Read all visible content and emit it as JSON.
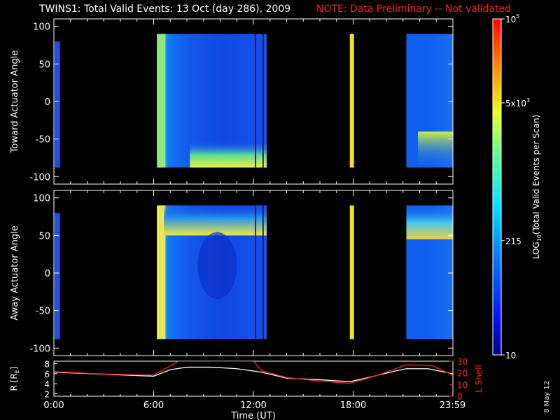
{
  "header": {
    "title": "TWINS1: Total Valid Events: 13 Oct (day 286), 2009",
    "note": "NOTE: Data Preliminary -- Not validated",
    "side_date": "8 May 12"
  },
  "chart_data": [
    {
      "type": "heatmap",
      "panel": "top",
      "ylabel": "Toward Actuator Angle",
      "ylim": [
        -110,
        110
      ],
      "yticks": [
        100,
        50,
        0,
        -50,
        -100
      ],
      "x_hours": [
        0,
        24
      ],
      "data_range_deg": [
        -88,
        90
      ],
      "blocks_hours": [
        {
          "start": 6.2,
          "end": 12.8,
          "style": "main"
        },
        {
          "start": 17.8,
          "end": 18.0,
          "style": "yellow"
        },
        {
          "start": 21.2,
          "end": 24.0,
          "style": "late"
        }
      ],
      "edge_strip_hours": [
        0,
        0.2
      ]
    },
    {
      "type": "heatmap",
      "panel": "middle",
      "ylabel": "Away Actuator Angle",
      "ylim": [
        -110,
        110
      ],
      "yticks": [
        100,
        50,
        0,
        -50,
        -100
      ],
      "x_hours": [
        0,
        24
      ],
      "data_range_deg": [
        -88,
        90
      ],
      "blocks_hours": [
        {
          "start": 6.2,
          "end": 12.8,
          "style": "main"
        },
        {
          "start": 17.8,
          "end": 18.0,
          "style": "yellow"
        },
        {
          "start": 21.2,
          "end": 24.0,
          "style": "late"
        }
      ],
      "edge_strip_hours": [
        0,
        0.2
      ]
    },
    {
      "type": "line",
      "panel": "bottom",
      "xlabel": "Time (UT)",
      "xticks": [
        "0:00",
        "6:00",
        "12:00",
        "18:00",
        "23:59"
      ],
      "xtick_hours": [
        0,
        6,
        12,
        18,
        23.98
      ],
      "left_axis": {
        "label": "R [RE]",
        "label_base": "R [R",
        "label_sub": "E",
        "label_end": "]",
        "ylim": [
          1.5,
          8.5
        ],
        "ticks": [
          2,
          4,
          6,
          8
        ],
        "color": "#ffffff"
      },
      "right_axis": {
        "label": "L Shell",
        "ylim": [
          0,
          30
        ],
        "ticks": [
          0,
          10,
          20,
          30
        ],
        "color": "#ff2020"
      },
      "series": [
        {
          "axis": "left",
          "color": "#ffffff",
          "x": [
            0,
            3,
            6,
            7,
            8,
            9.5,
            11,
            12.5,
            14,
            16,
            17.8,
            19,
            20.5,
            21.2,
            22.5,
            23.98
          ],
          "y": [
            6.3,
            5.9,
            5.5,
            6.8,
            7.3,
            7.3,
            7.0,
            6.3,
            5.1,
            4.8,
            4.4,
            5.3,
            6.5,
            7.0,
            7.0,
            6.0
          ]
        },
        {
          "axis": "right",
          "color": "#ff2020",
          "x": [
            0,
            3,
            6,
            7.5,
            12,
            12.5,
            14,
            16,
            17.8,
            19.5,
            21.2,
            22.8,
            23.98
          ],
          "y": [
            21,
            19,
            18,
            30,
            30,
            22,
            16,
            13,
            11,
            18,
            27,
            26,
            18
          ]
        }
      ]
    }
  ],
  "colorbar": {
    "label_base": "LOG",
    "label_sub": "10",
    "label_end": "(Total Valid Events per Scan)",
    "ticks": [
      {
        "mant": "10",
        "exp": "5",
        "frac": 1.0
      },
      {
        "mant": "5x10",
        "exp": "3",
        "frac": 0.75
      },
      {
        "mant": "215",
        "exp": "",
        "frac": 0.34
      },
      {
        "mant": "10",
        "exp": "",
        "frac": 0.0
      }
    ]
  },
  "colors": {
    "axis": "#ffffff",
    "note": "#ff2020",
    "background": "#000000"
  }
}
